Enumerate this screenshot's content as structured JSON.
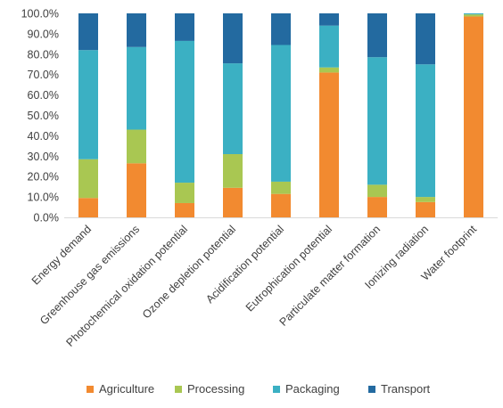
{
  "chart_data": {
    "type": "bar",
    "stacked": true,
    "categories": [
      "Energy demand",
      "Greenhouse gas emissions",
      "Photochemical oxidation potential",
      "Ozone depletion potential",
      "Acidification potential",
      "Eutrophication potential",
      "Particulate matter formation",
      "Ionizing radiation",
      "Water footprint"
    ],
    "series": [
      {
        "name": "Agriculture",
        "color": "#f28a30",
        "values": [
          9.5,
          26.5,
          7.0,
          14.5,
          11.5,
          71.0,
          10.0,
          7.5,
          98.5
        ]
      },
      {
        "name": "Processing",
        "color": "#a9c752",
        "values": [
          19.0,
          16.5,
          10.0,
          16.5,
          6.0,
          2.5,
          6.0,
          2.5,
          1.0
        ]
      },
      {
        "name": "Packaging",
        "color": "#3bb0c3",
        "values": [
          53.5,
          40.5,
          69.5,
          44.5,
          67.0,
          20.5,
          62.5,
          65.0,
          0.5
        ]
      },
      {
        "name": "Transport",
        "color": "#236aa0",
        "values": [
          18.0,
          16.5,
          13.5,
          24.5,
          15.5,
          6.0,
          21.5,
          25.0,
          0.0
        ]
      }
    ],
    "yticks": [
      "0.0%",
      "10.0%",
      "20.0%",
      "30.0%",
      "40.0%",
      "50.0%",
      "60.0%",
      "70.0%",
      "80.0%",
      "90.0%",
      "100.0%"
    ],
    "ylim": [
      0,
      100
    ],
    "title": "",
    "xlabel": "",
    "ylabel": "",
    "grid": false,
    "legend_position": "bottom"
  }
}
